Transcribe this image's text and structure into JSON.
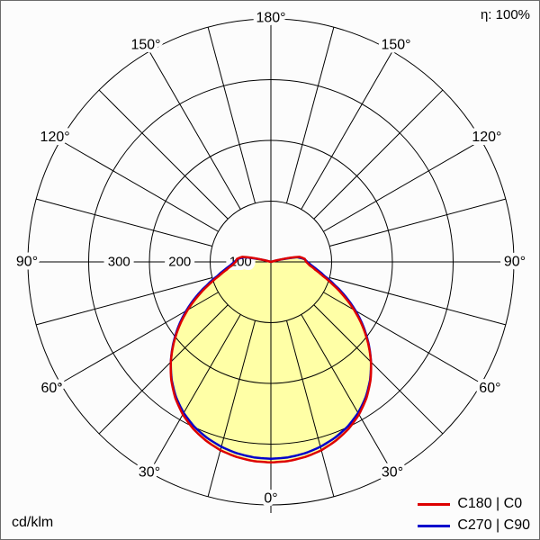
{
  "page": {
    "background": "#fcfcfc",
    "border_color": "#6b6b6b"
  },
  "header": {
    "efficiency_label": "η: 100%"
  },
  "footer": {
    "unit_label": "cd/klm"
  },
  "chart_data": {
    "type": "polar",
    "subtype": "photometric_intensity_distribution",
    "title": "",
    "unit": "cd/klm",
    "efficiency_label": "η: 100%",
    "grid_color": "#000000",
    "fill_color": "#ffffa6",
    "radial_axis": {
      "max": 400,
      "grid_circles": [
        100,
        200,
        300,
        400
      ],
      "tick_labels": [
        {
          "value": 100,
          "label": "100"
        },
        {
          "value": 200,
          "label": "200"
        },
        {
          "value": 300,
          "label": "300"
        }
      ]
    },
    "angular_axis": {
      "zero_position": "bottom",
      "radial_line_step_deg": 15,
      "label_step_deg": 30,
      "labels": [
        {
          "angle": 0,
          "label": "0°"
        },
        {
          "angle": 30,
          "label": "30°"
        },
        {
          "angle": 60,
          "label": "60°"
        },
        {
          "angle": 90,
          "label": "90°"
        },
        {
          "angle": 120,
          "label": "120°"
        },
        {
          "angle": 150,
          "label": "150°"
        },
        {
          "angle": 180,
          "label": "180°"
        }
      ]
    },
    "gamma_deg": [
      0,
      5,
      10,
      15,
      20,
      25,
      30,
      35,
      40,
      45,
      50,
      55,
      60,
      65,
      70,
      75,
      80,
      85,
      90,
      95,
      100,
      103,
      106
    ],
    "series": [
      {
        "name": "C180 | C0",
        "color": "#dd0000",
        "values": [
          330,
          329,
          326,
          321,
          313,
          303,
          290,
          274,
          255,
          233,
          209,
          184,
          158,
          132,
          108,
          88,
          74,
          64,
          58,
          56,
          48,
          25,
          0
        ]
      },
      {
        "name": "C270 | C90",
        "color": "#0000cc",
        "values": [
          324,
          323,
          320,
          315,
          308,
          299,
          287,
          272,
          254,
          233,
          210,
          186,
          161,
          136,
          112,
          92,
          78,
          67,
          60,
          55,
          44,
          20,
          0
        ]
      }
    ]
  }
}
